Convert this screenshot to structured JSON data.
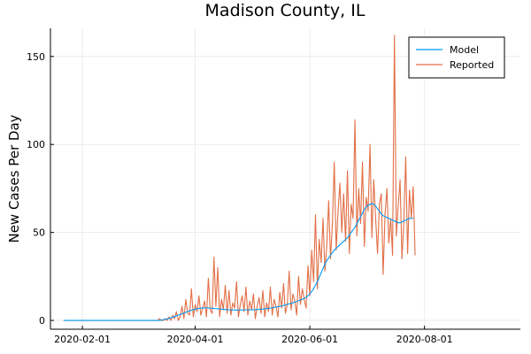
{
  "chart_data": {
    "type": "line",
    "title": "Madison County, IL",
    "xlabel": "",
    "ylabel": "New Cases Per Day",
    "x_start": "2020-01-22",
    "x_end": "2020-09-14",
    "xlim": [
      "2020-01-15",
      "2020-09-21"
    ],
    "ylim": [
      -5,
      166
    ],
    "x_ticks": [
      "2020-02-01",
      "2020-04-01",
      "2020-06-01",
      "2020-08-01"
    ],
    "y_ticks": [
      0,
      50,
      100,
      150
    ],
    "grid": true,
    "legend_position": "top-right",
    "series": [
      {
        "name": "Model",
        "color": "#009AFA",
        "values": [
          0,
          0,
          0,
          0,
          0,
          0,
          0,
          0,
          0,
          0,
          0,
          0,
          0,
          0,
          0,
          0,
          0,
          0,
          0,
          0,
          0,
          0,
          0,
          0,
          0,
          0,
          0,
          0,
          0,
          0,
          0,
          0,
          0,
          0,
          0,
          0,
          0,
          0,
          0,
          0,
          0,
          0,
          0,
          0,
          0,
          0,
          0,
          0,
          0,
          0,
          0,
          0,
          0.2,
          0.4,
          0.6,
          0.9,
          1.2,
          1.5,
          1.8,
          2.2,
          2.6,
          3.0,
          3.4,
          3.8,
          4.2,
          4.6,
          5.0,
          5.4,
          5.8,
          6.1,
          6.4,
          6.6,
          6.8,
          7.0,
          7.1,
          7.2,
          7.2,
          7.1,
          7.0,
          6.9,
          6.8,
          6.7,
          6.6,
          6.5,
          6.4,
          6.3,
          6.2,
          6.1,
          6.0,
          6.0,
          6.0,
          5.9,
          5.9,
          5.9,
          5.9,
          5.9,
          6.0,
          6.0,
          6.0,
          6.0,
          6.0,
          6.1,
          6.1,
          6.2,
          6.3,
          6.4,
          6.5,
          6.6,
          6.7,
          6.8,
          7.0,
          7.2,
          7.4,
          7.6,
          7.8,
          8.0,
          8.2,
          8.5,
          8.8,
          9.1,
          9.4,
          9.7,
          10.0,
          10.4,
          10.8,
          11.2,
          11.6,
          12.0,
          12.5,
          13.2,
          14.0,
          15.0,
          16.5,
          18.0,
          20.0,
          22.0,
          24.5,
          27.0,
          29.5,
          32.0,
          34.0,
          35.5,
          37.0,
          38.5,
          40.0,
          41.0,
          42.0,
          43.0,
          44.0,
          45.0,
          46.0,
          47.0,
          48.5,
          50.0,
          51.5,
          53.0,
          55.0,
          57.0,
          59.0,
          61.0,
          63.0,
          64.5,
          65.5,
          66.0,
          66.5,
          66.0,
          65.0,
          63.5,
          62.0,
          60.5,
          59.5,
          59.0,
          58.5,
          58.0,
          57.5,
          57.0,
          56.5,
          56.0,
          55.5,
          55.5,
          56.0,
          56.5,
          57.0,
          57.5,
          58.0,
          58.0,
          58.0
        ]
      },
      {
        "name": "Reported",
        "color": "#E26F46",
        "values": [
          0,
          0,
          0,
          0,
          0,
          0,
          0,
          0,
          0,
          0,
          0,
          0,
          0,
          0,
          0,
          0,
          0,
          0,
          0,
          0,
          0,
          0,
          0,
          0,
          0,
          0,
          0,
          0,
          0,
          0,
          0,
          0,
          0,
          0,
          0,
          0,
          0,
          0,
          0,
          0,
          0,
          0,
          0,
          0,
          0,
          0,
          0,
          0,
          0,
          0,
          0,
          1,
          0,
          0,
          1,
          0,
          2,
          0,
          3,
          1,
          5,
          0,
          2,
          8,
          1,
          12,
          4,
          3,
          18,
          2,
          9,
          5,
          14,
          3,
          7,
          11,
          2,
          24,
          6,
          4,
          36,
          8,
          30,
          2,
          12,
          6,
          20,
          4,
          17,
          3,
          10,
          7,
          22,
          2,
          9,
          14,
          5,
          19,
          3,
          11,
          6,
          15,
          1,
          8,
          13,
          4,
          17,
          2,
          10,
          5,
          19,
          3,
          12,
          8,
          2,
          16,
          7,
          21,
          4,
          9,
          28,
          6,
          15,
          11,
          3,
          25,
          9,
          18,
          12,
          7,
          31,
          14,
          40,
          22,
          60,
          18,
          46,
          33,
          58,
          28,
          42,
          68,
          35,
          55,
          90,
          40,
          62,
          78,
          50,
          72,
          45,
          85,
          38,
          66,
          58,
          114,
          48,
          75,
          55,
          90,
          42,
          70,
          62,
          100,
          47,
          80,
          58,
          38,
          66,
          72,
          26,
          60,
          75,
          44,
          58,
          37,
          162,
          48,
          65,
          80,
          35,
          56,
          93,
          38,
          74,
          58,
          76,
          37
        ]
      }
    ]
  }
}
